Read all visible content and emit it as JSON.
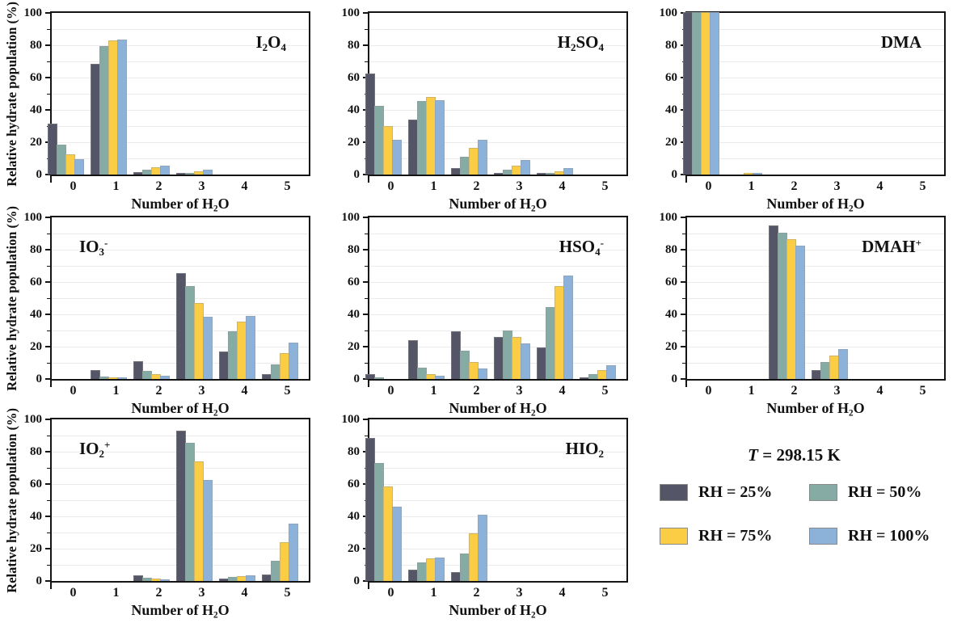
{
  "figure": {
    "ylabel": "Relative hydrate population (%)",
    "xlabel": "Number of H_2O"
  },
  "axes": {
    "ylim": [
      0,
      100
    ],
    "yticks": [
      0,
      20,
      40,
      60,
      80,
      100
    ],
    "minor_tick_step": 10,
    "grid_step": 10,
    "grid_on": true
  },
  "legend": {
    "temperature_var": "T",
    "temperature_rest": " = 298.15 K",
    "items": [
      {
        "label": "RH = 25%",
        "color": "#545668"
      },
      {
        "label": "RH = 50%",
        "color": "#85ABA4"
      },
      {
        "label": "RH = 75%",
        "color": "#FBCD45"
      },
      {
        "label": "RH = 100%",
        "color": "#8DB2DA"
      }
    ]
  },
  "chart_data": [
    {
      "type": "bar",
      "title": "I_2O_4",
      "title_pos": "right",
      "show_ylabel": true,
      "categories": [
        "0",
        "1",
        "2",
        "3",
        "4",
        "5"
      ],
      "ylim": [
        0,
        100
      ],
      "series": [
        {
          "name": "RH = 25%",
          "values": [
            31,
            68,
            1,
            0.5,
            0,
            0
          ]
        },
        {
          "name": "RH = 50%",
          "values": [
            18,
            79,
            2.5,
            0.5,
            0,
            0
          ]
        },
        {
          "name": "RH = 75%",
          "values": [
            12,
            82.5,
            4,
            1.5,
            0,
            0
          ]
        },
        {
          "name": "RH = 100%",
          "values": [
            9,
            83,
            5,
            2.5,
            0,
            0
          ]
        }
      ]
    },
    {
      "type": "bar",
      "title": "H_2SO_4",
      "title_pos": "right",
      "show_ylabel": false,
      "categories": [
        "0",
        "1",
        "2",
        "3",
        "4",
        "5"
      ],
      "ylim": [
        0,
        100
      ],
      "series": [
        {
          "name": "RH = 25%",
          "values": [
            62,
            33.5,
            3.5,
            0.3,
            0.3,
            0
          ]
        },
        {
          "name": "RH = 50%",
          "values": [
            42,
            45,
            10.5,
            2.5,
            0.5,
            0
          ]
        },
        {
          "name": "RH = 75%",
          "values": [
            29.5,
            47.5,
            16,
            5,
            1.5,
            0
          ]
        },
        {
          "name": "RH = 100%",
          "values": [
            21,
            45.5,
            21,
            8.5,
            3.5,
            0
          ]
        }
      ]
    },
    {
      "type": "bar",
      "title": "DMA",
      "title_pos": "right",
      "show_ylabel": false,
      "categories": [
        "0",
        "1",
        "2",
        "3",
        "4",
        "5"
      ],
      "ylim": [
        0,
        100
      ],
      "series": [
        {
          "name": "RH = 25%",
          "values": [
            100,
            0,
            0,
            0,
            0,
            0
          ]
        },
        {
          "name": "RH = 50%",
          "values": [
            100,
            0,
            0,
            0,
            0,
            0
          ]
        },
        {
          "name": "RH = 75%",
          "values": [
            100,
            0.2,
            0,
            0,
            0,
            0
          ]
        },
        {
          "name": "RH = 100%",
          "values": [
            100,
            0.5,
            0,
            0,
            0,
            0
          ]
        }
      ]
    },
    {
      "type": "bar",
      "title": "IO_3^-",
      "title_pos": "left",
      "show_ylabel": true,
      "categories": [
        "0",
        "1",
        "2",
        "3",
        "4",
        "5"
      ],
      "ylim": [
        0,
        100
      ],
      "series": [
        {
          "name": "RH = 25%",
          "values": [
            0,
            5,
            10.5,
            65,
            16.5,
            2.5
          ]
        },
        {
          "name": "RH = 50%",
          "values": [
            0,
            1,
            4.5,
            57,
            29,
            8.5
          ]
        },
        {
          "name": "RH = 75%",
          "values": [
            0,
            0.3,
            2.5,
            46.5,
            35,
            15.5
          ]
        },
        {
          "name": "RH = 100%",
          "values": [
            0,
            0.3,
            1.5,
            38,
            38.5,
            22
          ]
        }
      ]
    },
    {
      "type": "bar",
      "title": "HSO_4^-",
      "title_pos": "right",
      "show_ylabel": false,
      "categories": [
        "0",
        "1",
        "2",
        "3",
        "4",
        "5"
      ],
      "ylim": [
        0,
        100
      ],
      "series": [
        {
          "name": "RH = 25%",
          "values": [
            2.5,
            23.5,
            29,
            25.5,
            19,
            0.5
          ]
        },
        {
          "name": "RH = 50%",
          "values": [
            0.3,
            6.5,
            17,
            29.5,
            44,
            2.5
          ]
        },
        {
          "name": "RH = 75%",
          "values": [
            0,
            2.5,
            10,
            25.5,
            57,
            5
          ]
        },
        {
          "name": "RH = 100%",
          "values": [
            0,
            1.5,
            6,
            21.5,
            63.5,
            8
          ]
        }
      ]
    },
    {
      "type": "bar",
      "title": "DMAH^+",
      "title_pos": "right",
      "show_ylabel": false,
      "categories": [
        "0",
        "1",
        "2",
        "3",
        "4",
        "5"
      ],
      "ylim": [
        0,
        100
      ],
      "series": [
        {
          "name": "RH = 25%",
          "values": [
            0,
            0,
            94.5,
            5,
            0,
            0
          ]
        },
        {
          "name": "RH = 50%",
          "values": [
            0,
            0,
            90,
            10,
            0,
            0
          ]
        },
        {
          "name": "RH = 75%",
          "values": [
            0,
            0,
            86,
            14,
            0,
            0
          ]
        },
        {
          "name": "RH = 100%",
          "values": [
            0,
            0,
            82,
            18,
            0,
            0
          ]
        }
      ]
    },
    {
      "type": "bar",
      "title": "IO_2^+",
      "title_pos": "left",
      "show_ylabel": true,
      "categories": [
        "0",
        "1",
        "2",
        "3",
        "4",
        "5"
      ],
      "ylim": [
        0,
        100
      ],
      "series": [
        {
          "name": "RH = 25%",
          "values": [
            0,
            0,
            3,
            92.5,
            1,
            3.5
          ]
        },
        {
          "name": "RH = 50%",
          "values": [
            0,
            0,
            1.5,
            85,
            2,
            12
          ]
        },
        {
          "name": "RH = 75%",
          "values": [
            0,
            0,
            1,
            73.5,
            2.5,
            23.5
          ]
        },
        {
          "name": "RH = 100%",
          "values": [
            0,
            0,
            0.5,
            62,
            3,
            35
          ]
        }
      ]
    },
    {
      "type": "bar",
      "title": "HIO_2",
      "title_pos": "right",
      "show_ylabel": false,
      "categories": [
        "0",
        "1",
        "2",
        "3",
        "4",
        "5"
      ],
      "ylim": [
        0,
        100
      ],
      "series": [
        {
          "name": "RH = 25%",
          "values": [
            88,
            6.5,
            5,
            0,
            0,
            0
          ]
        },
        {
          "name": "RH = 50%",
          "values": [
            72.5,
            11,
            16.5,
            0,
            0,
            0
          ]
        },
        {
          "name": "RH = 75%",
          "values": [
            58,
            13.5,
            29,
            0,
            0,
            0
          ]
        },
        {
          "name": "RH = 100%",
          "values": [
            45.5,
            14,
            40.5,
            0,
            0,
            0
          ]
        }
      ]
    }
  ]
}
